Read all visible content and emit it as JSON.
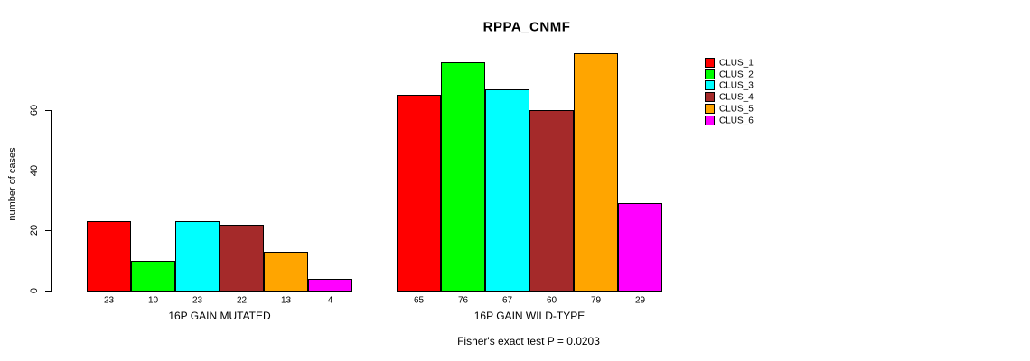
{
  "chart_data": {
    "type": "bar",
    "title": "RPPA_CNMF",
    "ylabel": "number of cases",
    "xlabel": "",
    "ylim": [
      0,
      80
    ],
    "yticks": [
      0,
      20,
      40,
      60
    ],
    "grid": false,
    "legend_position": "right",
    "bar_value_labels": true,
    "annotation": "Fisher's exact test P = 0.0203",
    "categories": [
      "16P GAIN MUTATED",
      "16P GAIN WILD-TYPE"
    ],
    "series": [
      {
        "name": "CLUS_1",
        "color": "#FF0000",
        "values": [
          23,
          65
        ]
      },
      {
        "name": "CLUS_2",
        "color": "#00FF00",
        "values": [
          10,
          76
        ]
      },
      {
        "name": "CLUS_3",
        "color": "#00FFFF",
        "values": [
          23,
          67
        ]
      },
      {
        "name": "CLUS_4",
        "color": "#A52A2A",
        "values": [
          22,
          60
        ]
      },
      {
        "name": "CLUS_5",
        "color": "#FFA500",
        "values": [
          13,
          79
        ]
      },
      {
        "name": "CLUS_6",
        "color": "#FF00FF",
        "values": [
          4,
          29
        ]
      }
    ]
  }
}
